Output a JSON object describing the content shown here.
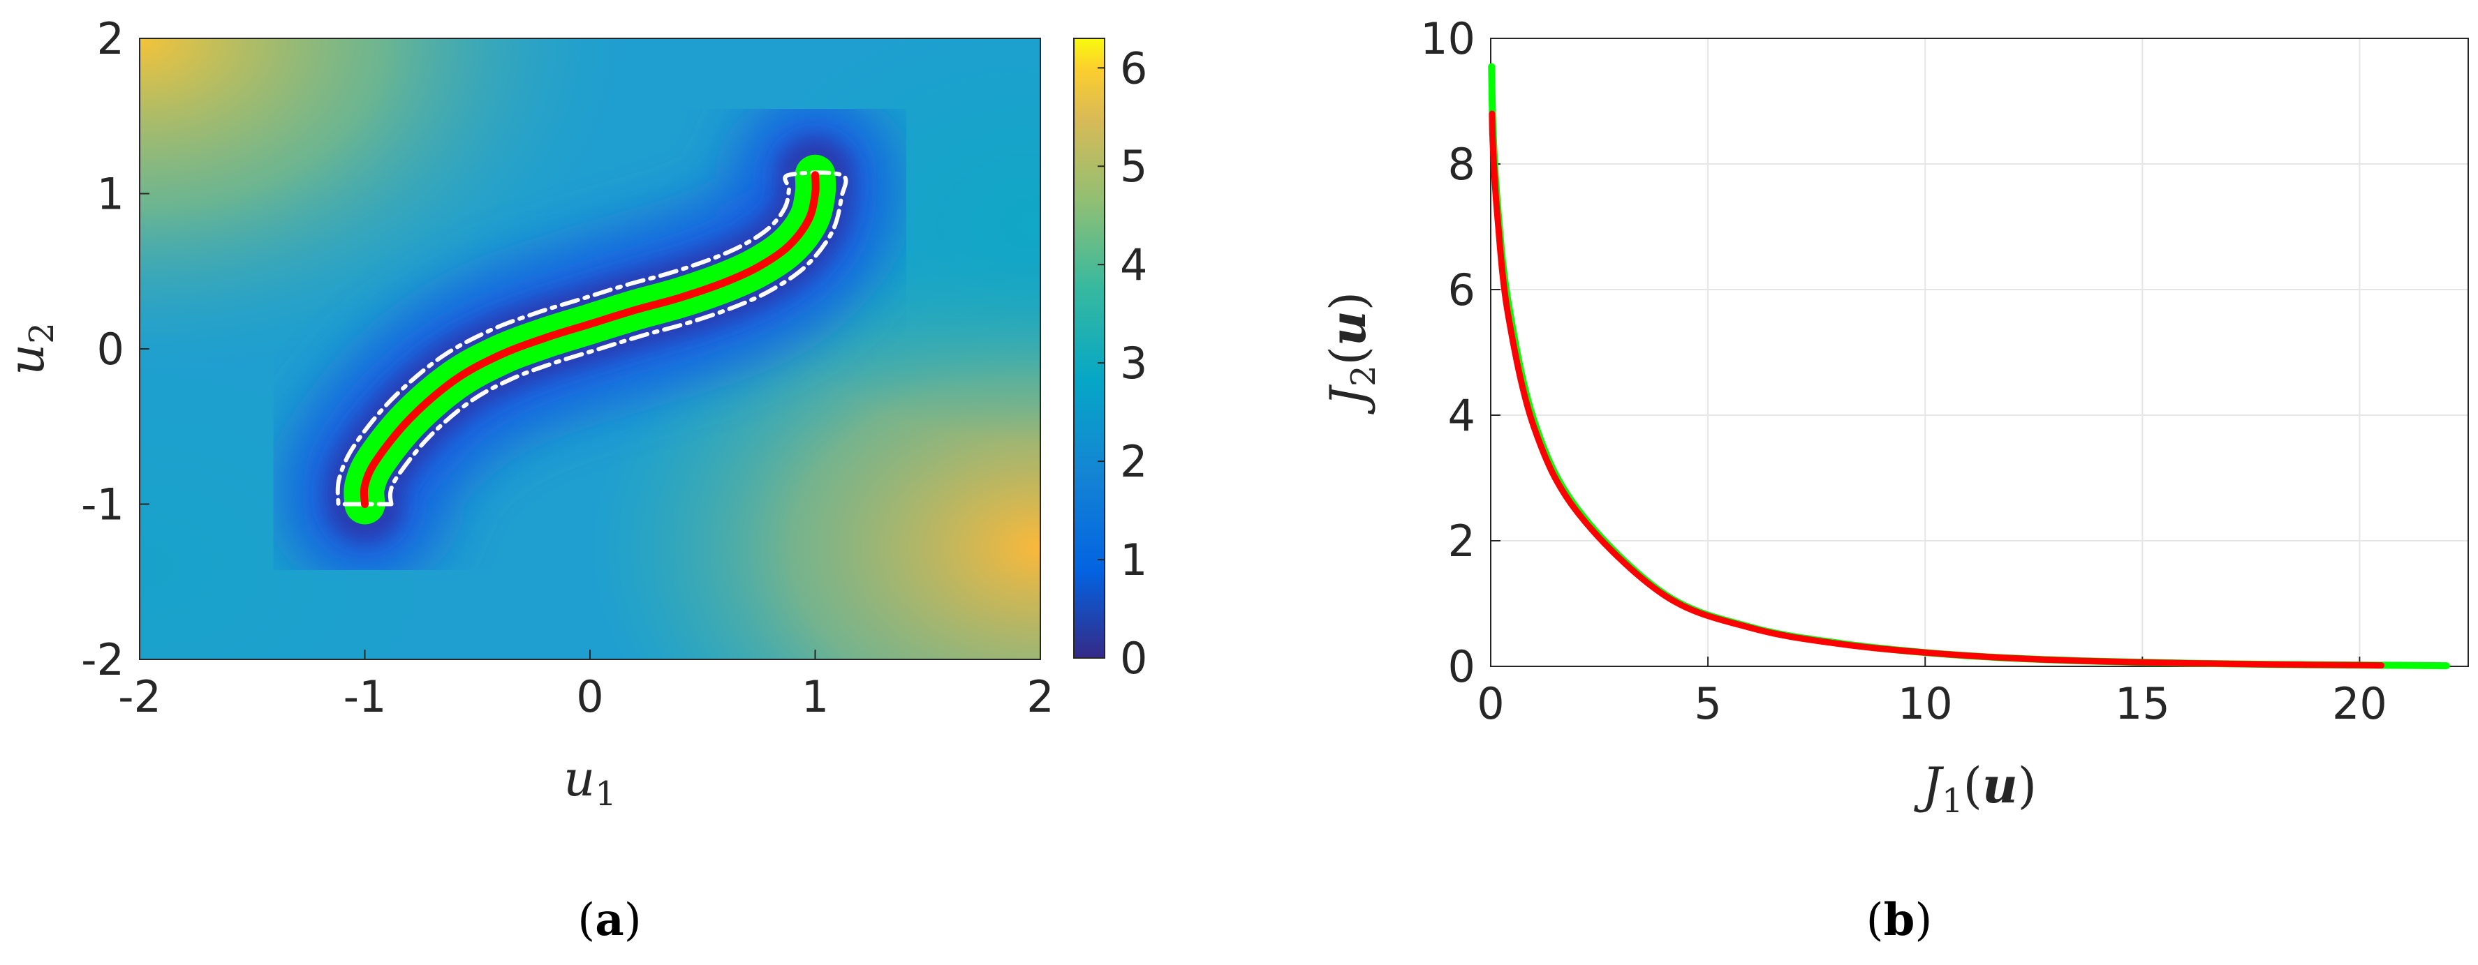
{
  "panels": [
    {
      "open": "(",
      "letter": "a",
      "close": ")"
    },
    {
      "open": "(",
      "letter": "b",
      "close": ")"
    }
  ],
  "chart_data": [
    {
      "type": "heatmap",
      "xlabel": {
        "main": "u",
        "sub": "1"
      },
      "ylabel": {
        "main": "u",
        "sub": "2"
      },
      "xlim": [
        -2,
        2
      ],
      "ylim": [
        -2,
        2
      ],
      "xticks": [
        "-2",
        "-1",
        "0",
        "1",
        "2"
      ],
      "yticks": [
        "-2",
        "-1",
        "0",
        "1",
        "2"
      ],
      "colorbar": {
        "range": [
          0,
          6.3
        ],
        "ticks": [
          "0",
          "1",
          "2",
          "3",
          "4",
          "5",
          "6"
        ],
        "colormap": "parula"
      },
      "colors": {
        "pareto_set": "#ff0000",
        "near_optimal_region": "#00ff00",
        "boundary": "#ffffff"
      },
      "pareto_set_curve": [
        [
          -1.0,
          -1.0
        ],
        [
          -1.0,
          -0.88
        ],
        [
          -0.95,
          -0.72
        ],
        [
          -0.8,
          -0.45
        ],
        [
          -0.6,
          -0.2
        ],
        [
          -0.4,
          -0.04
        ],
        [
          -0.2,
          0.07
        ],
        [
          0.0,
          0.16
        ],
        [
          0.2,
          0.25
        ],
        [
          0.4,
          0.33
        ],
        [
          0.6,
          0.43
        ],
        [
          0.75,
          0.53
        ],
        [
          0.88,
          0.66
        ],
        [
          0.97,
          0.83
        ],
        [
          1.0,
          1.0
        ],
        [
          1.0,
          1.12
        ]
      ]
    },
    {
      "type": "line",
      "xlabel": {
        "main": "J",
        "sub": "1",
        "arg": "u"
      },
      "ylabel": {
        "main": "J",
        "sub": "2",
        "arg": "u"
      },
      "xlim": [
        0,
        22.5
      ],
      "ylim": [
        0,
        10
      ],
      "xticks": [
        0,
        5,
        10,
        15,
        20
      ],
      "yticks": [
        0,
        2,
        4,
        6,
        8,
        10
      ],
      "grid": true,
      "series": [
        {
          "color": "#00ff00",
          "x": [
            0.02,
            0.05,
            0.15,
            0.4,
            1,
            2,
            4,
            6,
            8,
            10,
            12,
            14,
            16,
            18,
            20,
            22
          ],
          "y": [
            9.55,
            8.6,
            7.4,
            5.8,
            3.9,
            2.5,
            1.15,
            0.62,
            0.37,
            0.22,
            0.13,
            0.08,
            0.05,
            0.03,
            0.02,
            0.01
          ]
        },
        {
          "color": "#ff0000",
          "x": [
            0.03,
            0.05,
            0.15,
            0.4,
            1,
            2,
            4,
            6,
            8,
            10,
            12,
            14,
            16,
            18,
            20,
            20.5
          ],
          "y": [
            8.8,
            8.3,
            7.2,
            5.6,
            3.8,
            2.45,
            1.13,
            0.61,
            0.36,
            0.22,
            0.13,
            0.08,
            0.05,
            0.03,
            0.02,
            0.015
          ]
        }
      ]
    }
  ]
}
